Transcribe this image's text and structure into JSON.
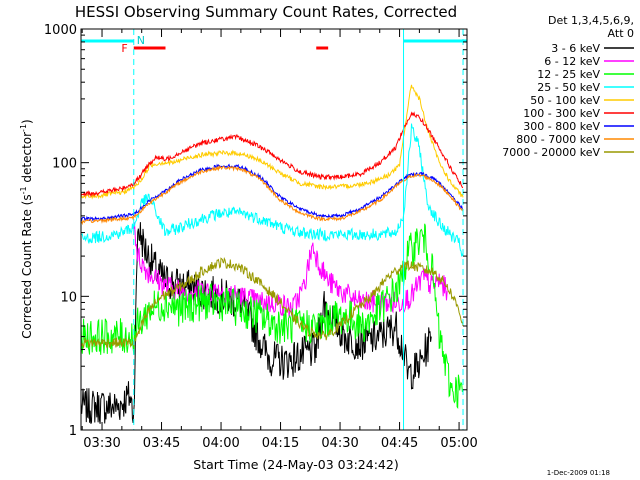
{
  "chart_data": {
    "type": "line",
    "title": "HESSI Observing Summary Count Rates, Corrected",
    "xlabel": "Start Time (24-May-03 03:24:42)",
    "ylabel_main": "Corrected Count Rate (s",
    "ylabel_sup1": "-1",
    "ylabel_mid": " detector",
    "ylabel_sup2": "-1",
    "ylabel_end": ")",
    "yscale": "log",
    "ylim": [
      1,
      1000
    ],
    "xlim_minutes": [
      "03:24:42",
      "05:02:00"
    ],
    "x_ticks": [
      "03:30",
      "03:45",
      "04:00",
      "04:15",
      "04:30",
      "04:45",
      "05:00"
    ],
    "y_ticks": [
      "1",
      "10",
      "100",
      "1000"
    ],
    "legend": {
      "position": "top-right",
      "header_line1": "Det 1,3,4,5,6,9,",
      "header_line2": "Att 0"
    },
    "markers": {
      "flare_label": "F",
      "night_label": "N",
      "flare_intervals": [
        [
          "03:38",
          "03:46"
        ],
        [
          "04:24",
          "04:27"
        ]
      ],
      "night_intervals": [
        [
          "03:24:42",
          "03:38"
        ],
        [
          "04:46",
          "05:02"
        ]
      ],
      "vertical_lines_solid": [
        "03:24:42",
        "04:46"
      ],
      "vertical_lines_dashed": [
        "03:38",
        "05:01"
      ]
    },
    "series": [
      {
        "name": "3 - 6 keV",
        "color": "#000000",
        "points": [
          [
            "03:24:42",
            1.5
          ],
          [
            "03:34",
            1.5
          ],
          [
            "03:37",
            1.8
          ],
          [
            "03:38",
            1.3
          ],
          [
            "03:39",
            33
          ],
          [
            "03:41",
            22
          ],
          [
            "03:44",
            15
          ],
          [
            "03:46",
            13
          ],
          [
            "03:50",
            12
          ],
          [
            "03:55",
            11
          ],
          [
            "04:00",
            10
          ],
          [
            "04:05",
            9
          ],
          [
            "04:08",
            6
          ],
          [
            "04:12",
            3.5
          ],
          [
            "04:16",
            3.2
          ],
          [
            "04:20",
            3.6
          ],
          [
            "04:24",
            4
          ],
          [
            "04:26",
            9
          ],
          [
            "04:28",
            7
          ],
          [
            "04:31",
            5
          ],
          [
            "04:35",
            4.5
          ],
          [
            "04:40",
            5
          ],
          [
            "04:44",
            6
          ],
          [
            "04:46",
            4
          ],
          [
            "04:47",
            2.6
          ],
          [
            "04:50",
            3
          ],
          [
            "04:53",
            5
          ]
        ]
      },
      {
        "name": "6 - 12 keV",
        "color": "#ff00ff",
        "points": [
          [
            "03:38",
            38
          ],
          [
            "03:39",
            20
          ],
          [
            "03:41",
            16
          ],
          [
            "03:43",
            14
          ],
          [
            "03:46",
            12
          ],
          [
            "03:50",
            11
          ],
          [
            "03:55",
            11
          ],
          [
            "04:00",
            11
          ],
          [
            "04:05",
            10
          ],
          [
            "04:10",
            9
          ],
          [
            "04:14",
            9
          ],
          [
            "04:18",
            8
          ],
          [
            "04:21",
            12
          ],
          [
            "04:23",
            24
          ],
          [
            "04:25",
            17
          ],
          [
            "04:27",
            13
          ],
          [
            "04:30",
            11
          ],
          [
            "04:35",
            9
          ],
          [
            "04:40",
            9
          ],
          [
            "04:45",
            9
          ],
          [
            "04:48",
            10
          ],
          [
            "04:51",
            14
          ],
          [
            "04:53",
            12
          ],
          [
            "04:55",
            13
          ],
          [
            "04:57",
            11
          ]
        ]
      },
      {
        "name": "12 - 25 keV",
        "color": "#00ff00",
        "points": [
          [
            "03:24:42",
            5
          ],
          [
            "03:30",
            5
          ],
          [
            "03:35",
            5
          ],
          [
            "03:38",
            5
          ],
          [
            "03:39",
            6
          ],
          [
            "03:42",
            8
          ],
          [
            "03:46",
            9
          ],
          [
            "03:50",
            8
          ],
          [
            "03:55",
            9
          ],
          [
            "04:00",
            9
          ],
          [
            "04:05",
            8
          ],
          [
            "04:10",
            7
          ],
          [
            "04:15",
            6
          ],
          [
            "04:20",
            6
          ],
          [
            "04:25",
            6
          ],
          [
            "04:28",
            7
          ],
          [
            "04:32",
            7
          ],
          [
            "04:36",
            6
          ],
          [
            "04:40",
            8
          ],
          [
            "04:45",
            12
          ],
          [
            "04:47",
            20
          ],
          [
            "04:49",
            25
          ],
          [
            "04:51",
            28
          ],
          [
            "04:53",
            18
          ],
          [
            "04:55",
            5
          ],
          [
            "04:58",
            2
          ],
          [
            "05:01",
            2
          ]
        ]
      },
      {
        "name": "25 - 50 keV",
        "color": "#00ffff",
        "points": [
          [
            "03:24:42",
            27
          ],
          [
            "03:30",
            28
          ],
          [
            "03:35",
            30
          ],
          [
            "03:38",
            33
          ],
          [
            "03:40",
            50
          ],
          [
            "03:42",
            55
          ],
          [
            "03:44",
            40
          ],
          [
            "03:46",
            30
          ],
          [
            "03:50",
            33
          ],
          [
            "03:55",
            38
          ],
          [
            "04:00",
            42
          ],
          [
            "04:05",
            42
          ],
          [
            "04:10",
            38
          ],
          [
            "04:15",
            33
          ],
          [
            "04:20",
            30
          ],
          [
            "04:25",
            29
          ],
          [
            "04:30",
            29
          ],
          [
            "04:35",
            29
          ],
          [
            "04:40",
            29
          ],
          [
            "04:44",
            30
          ],
          [
            "04:46",
            40
          ],
          [
            "04:48",
            180
          ],
          [
            "04:50",
            130
          ],
          [
            "04:52",
            50
          ],
          [
            "04:55",
            35
          ],
          [
            "05:00",
            25
          ],
          [
            "05:01",
            20
          ]
        ]
      },
      {
        "name": "50 - 100 keV",
        "color": "#ffcc00",
        "points": [
          [
            "03:24:42",
            55
          ],
          [
            "03:30",
            57
          ],
          [
            "03:35",
            60
          ],
          [
            "03:38",
            65
          ],
          [
            "03:40",
            75
          ],
          [
            "03:42",
            95
          ],
          [
            "03:45",
            100
          ],
          [
            "03:48",
            100
          ],
          [
            "03:52",
            110
          ],
          [
            "03:56",
            115
          ],
          [
            "04:00",
            118
          ],
          [
            "04:04",
            118
          ],
          [
            "04:08",
            110
          ],
          [
            "04:12",
            95
          ],
          [
            "04:16",
            80
          ],
          [
            "04:20",
            70
          ],
          [
            "04:25",
            66
          ],
          [
            "04:30",
            66
          ],
          [
            "04:34",
            68
          ],
          [
            "04:38",
            72
          ],
          [
            "04:42",
            80
          ],
          [
            "04:45",
            95
          ],
          [
            "04:47",
            250
          ],
          [
            "04:48",
            380
          ],
          [
            "04:50",
            300
          ],
          [
            "04:52",
            180
          ],
          [
            "04:55",
            100
          ],
          [
            "04:58",
            70
          ],
          [
            "05:01",
            55
          ]
        ]
      },
      {
        "name": "100 - 300 keV",
        "color": "#ff0000",
        "points": [
          [
            "03:24:42",
            58
          ],
          [
            "03:30",
            60
          ],
          [
            "03:35",
            64
          ],
          [
            "03:38",
            70
          ],
          [
            "03:40",
            82
          ],
          [
            "03:42",
            100
          ],
          [
            "03:44",
            110
          ],
          [
            "03:46",
            105
          ],
          [
            "03:50",
            120
          ],
          [
            "03:55",
            140
          ],
          [
            "04:00",
            150
          ],
          [
            "04:04",
            155
          ],
          [
            "04:08",
            140
          ],
          [
            "04:12",
            120
          ],
          [
            "04:16",
            100
          ],
          [
            "04:20",
            85
          ],
          [
            "04:25",
            78
          ],
          [
            "04:30",
            78
          ],
          [
            "04:35",
            82
          ],
          [
            "04:40",
            100
          ],
          [
            "04:44",
            130
          ],
          [
            "04:46",
            180
          ],
          [
            "04:48",
            230
          ],
          [
            "04:50",
            220
          ],
          [
            "04:52",
            180
          ],
          [
            "04:55",
            130
          ],
          [
            "04:58",
            90
          ],
          [
            "05:01",
            65
          ]
        ]
      },
      {
        "name": "300 - 800 keV",
        "color": "#0000ff",
        "points": [
          [
            "03:24:42",
            38
          ],
          [
            "03:30",
            38
          ],
          [
            "03:35",
            40
          ],
          [
            "03:38",
            41
          ],
          [
            "03:42",
            52
          ],
          [
            "03:46",
            62
          ],
          [
            "03:50",
            75
          ],
          [
            "03:55",
            88
          ],
          [
            "04:00",
            95
          ],
          [
            "04:05",
            93
          ],
          [
            "04:10",
            78
          ],
          [
            "04:15",
            55
          ],
          [
            "04:20",
            45
          ],
          [
            "04:25",
            40
          ],
          [
            "04:30",
            40
          ],
          [
            "04:35",
            45
          ],
          [
            "04:40",
            55
          ],
          [
            "04:45",
            72
          ],
          [
            "04:48",
            82
          ],
          [
            "04:51",
            82
          ],
          [
            "04:54",
            75
          ],
          [
            "04:57",
            62
          ],
          [
            "05:01",
            45
          ]
        ]
      },
      {
        "name": "800 - 7000 keV",
        "color": "#ff8800",
        "points": [
          [
            "03:24:42",
            36
          ],
          [
            "03:30",
            37
          ],
          [
            "03:35",
            38
          ],
          [
            "03:38",
            39
          ],
          [
            "03:42",
            50
          ],
          [
            "03:46",
            60
          ],
          [
            "03:50",
            72
          ],
          [
            "03:55",
            86
          ],
          [
            "04:00",
            92
          ],
          [
            "04:05",
            90
          ],
          [
            "04:10",
            75
          ],
          [
            "04:15",
            52
          ],
          [
            "04:20",
            42
          ],
          [
            "04:25",
            38
          ],
          [
            "04:30",
            38
          ],
          [
            "04:35",
            43
          ],
          [
            "04:40",
            52
          ],
          [
            "04:45",
            70
          ],
          [
            "04:48",
            80
          ],
          [
            "04:51",
            80
          ],
          [
            "04:54",
            72
          ],
          [
            "04:57",
            60
          ],
          [
            "05:01",
            43
          ]
        ]
      },
      {
        "name": "7000 - 20000 keV",
        "color": "#999900",
        "points": [
          [
            "03:24:42",
            4.5
          ],
          [
            "03:30",
            4.5
          ],
          [
            "03:35",
            4.5
          ],
          [
            "03:38",
            4.5
          ],
          [
            "03:40",
            6
          ],
          [
            "03:42",
            8
          ],
          [
            "03:45",
            10
          ],
          [
            "03:48",
            11
          ],
          [
            "03:52",
            13
          ],
          [
            "03:56",
            16
          ],
          [
            "04:00",
            18
          ],
          [
            "04:04",
            17
          ],
          [
            "04:08",
            14
          ],
          [
            "04:12",
            11
          ],
          [
            "04:15",
            9
          ],
          [
            "04:18",
            7
          ],
          [
            "04:22",
            5.5
          ],
          [
            "04:26",
            5
          ],
          [
            "04:30",
            6
          ],
          [
            "04:34",
            8
          ],
          [
            "04:38",
            10
          ],
          [
            "04:42",
            14
          ],
          [
            "04:46",
            17
          ],
          [
            "04:48",
            17
          ],
          [
            "04:51",
            16
          ],
          [
            "04:54",
            15
          ],
          [
            "04:57",
            12
          ],
          [
            "05:00",
            8
          ],
          [
            "05:01",
            6
          ]
        ]
      }
    ]
  },
  "footer": {
    "timestamp": "1-Dec-2009 01:18"
  }
}
